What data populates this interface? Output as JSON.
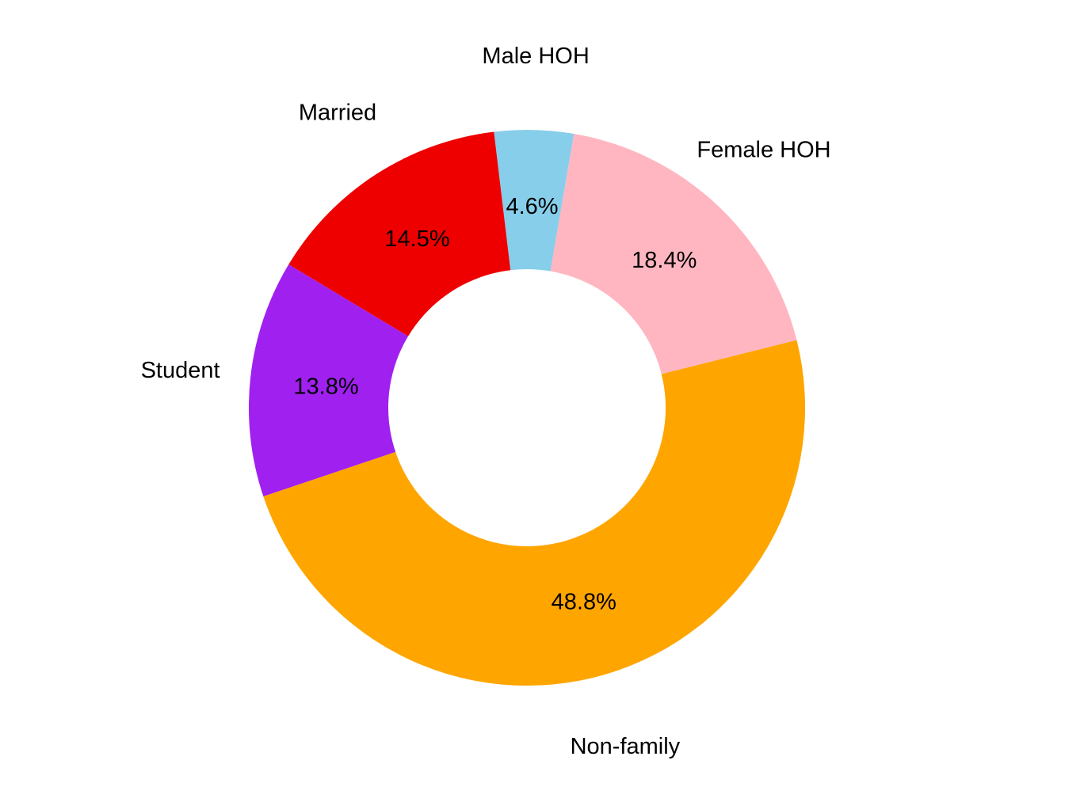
{
  "chart_data": {
    "type": "pie",
    "variant": "donut",
    "title": "",
    "slices": [
      {
        "label": "Non-family",
        "value": 48.8,
        "value_label": "48.8%",
        "color": "#FFA500"
      },
      {
        "label": "Female HOH",
        "value": 18.4,
        "value_label": "18.4%",
        "color": "#FFB6C1"
      },
      {
        "label": "Male HOH",
        "value": 4.6,
        "value_label": "4.6%",
        "color": "#87CEEB"
      },
      {
        "label": "Married",
        "value": 14.5,
        "value_label": "14.5%",
        "color": "#EE0000"
      },
      {
        "label": "Student",
        "value": 13.8,
        "value_label": "13.8%",
        "color": "#A020F0"
      }
    ],
    "direction": "counterclockwise",
    "legend": "none"
  }
}
